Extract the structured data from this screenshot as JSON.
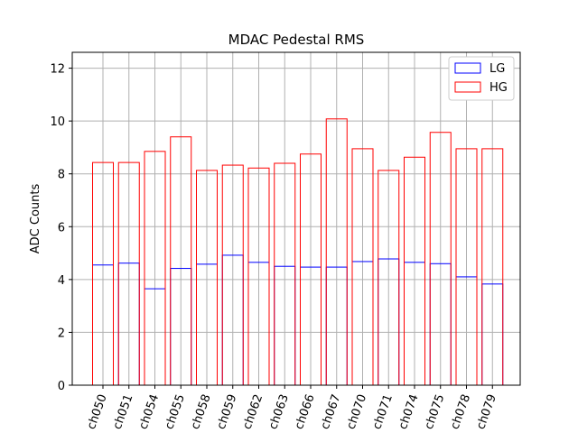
{
  "chart_data": {
    "type": "bar",
    "title": "MDAC Pedestal RMS",
    "xlabel": "",
    "ylabel": "ADC Counts",
    "ylim": [
      0,
      12.6
    ],
    "yticks": [
      0,
      2,
      4,
      6,
      8,
      10,
      12
    ],
    "grid": true,
    "legend_position": "top-right",
    "categories": [
      "ch050",
      "ch051",
      "ch054",
      "ch055",
      "ch058",
      "ch059",
      "ch062",
      "ch063",
      "ch066",
      "ch067",
      "ch070",
      "ch071",
      "ch074",
      "ch075",
      "ch078",
      "ch079"
    ],
    "series": [
      {
        "name": "LG",
        "color": "#0000ff",
        "values": [
          4.55,
          4.62,
          3.65,
          4.42,
          4.58,
          4.92,
          4.65,
          4.5,
          4.47,
          4.47,
          4.68,
          4.78,
          4.65,
          4.6,
          4.1,
          3.83
        ]
      },
      {
        "name": "HG",
        "color": "#ff0000",
        "values": [
          8.43,
          8.43,
          8.85,
          9.4,
          8.13,
          8.33,
          8.22,
          8.4,
          8.75,
          10.08,
          8.95,
          8.13,
          8.63,
          9.57,
          8.95,
          8.95
        ]
      }
    ]
  }
}
